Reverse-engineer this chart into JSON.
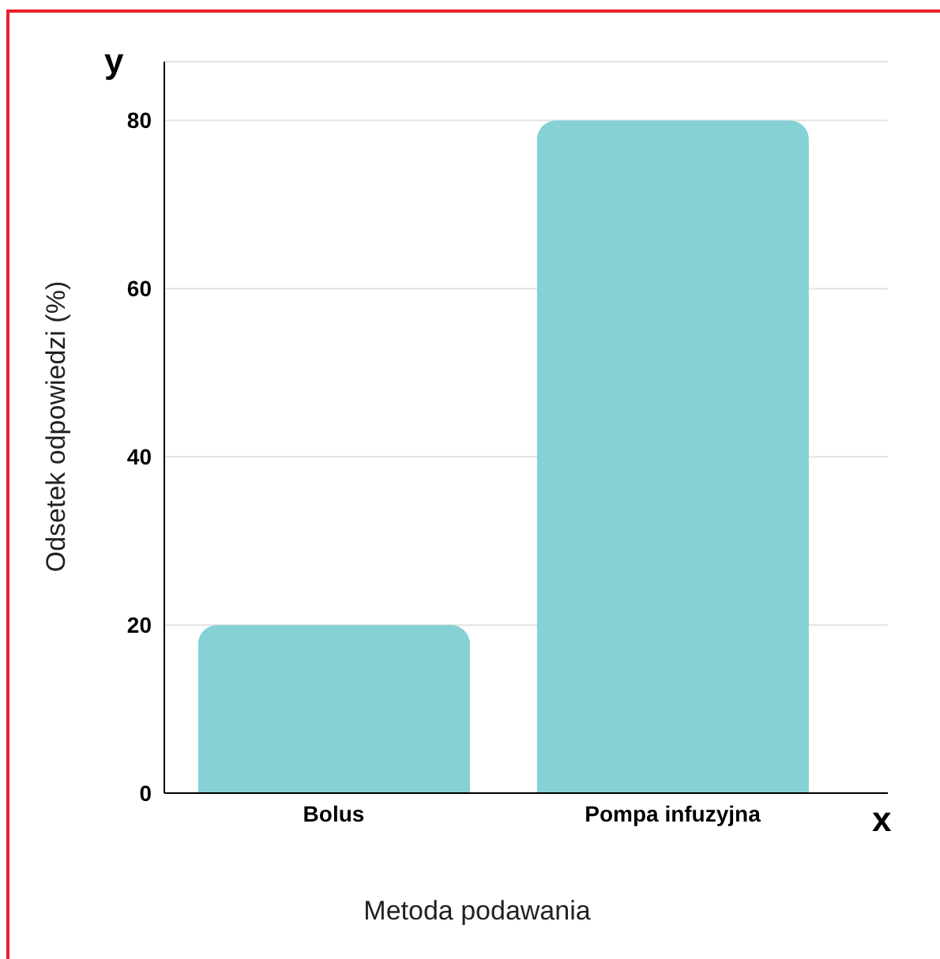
{
  "chart_data": {
    "type": "bar",
    "xlabel": "Metoda podawania",
    "ylabel": "Odsetek odpowiedzi (%)",
    "annotations": [
      "y",
      "x"
    ],
    "categories": [
      "Bolus",
      "Pompa infuzyjna"
    ],
    "values": [
      20,
      80
    ],
    "color": "#85d1d5",
    "ylim": [
      0,
      87
    ],
    "yticks": [
      0,
      20,
      40,
      60,
      80
    ],
    "grid": "y"
  }
}
